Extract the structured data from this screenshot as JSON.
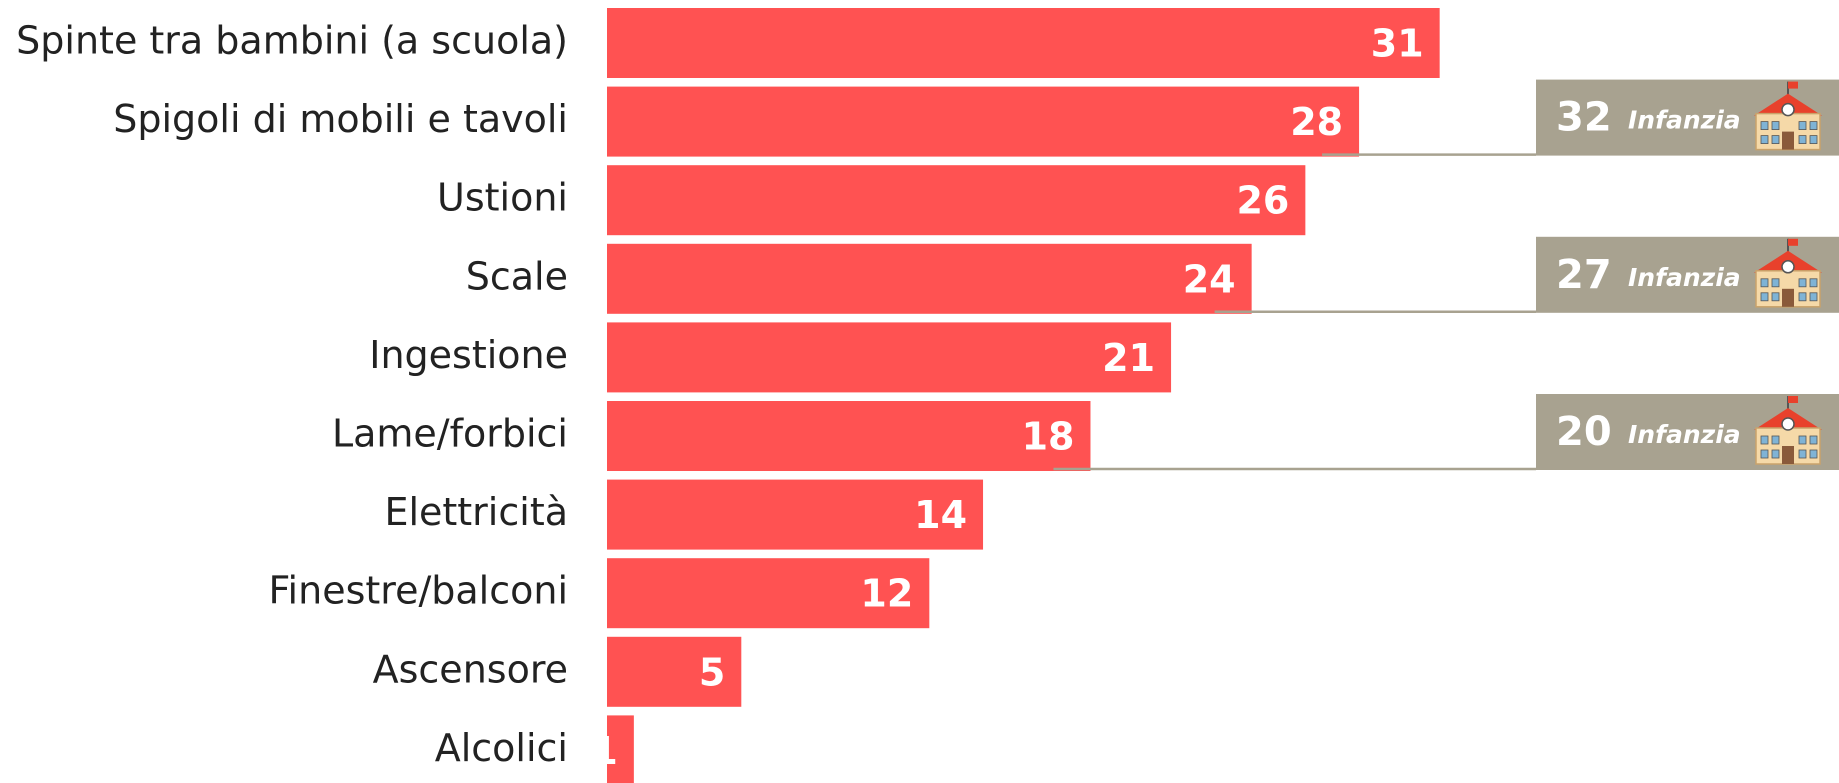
{
  "chart_data": {
    "type": "barh",
    "categories": [
      "Spinte tra bambini (a scuola)",
      "Spigoli di mobili e tavoli",
      "Ustioni",
      "Scale",
      "Ingestione",
      "Lame/forbici",
      "Elettricità",
      "Finestre/balconi",
      "Ascensore",
      "Alcolici"
    ],
    "values": [
      31,
      28,
      26,
      24,
      21,
      18,
      14,
      12,
      5,
      1
    ],
    "color": "#ff5252",
    "annotation_values": [
      null,
      32,
      null,
      27,
      null,
      20,
      null,
      null,
      null,
      null
    ],
    "annotation_labels": [
      null,
      "Infanzia",
      null,
      "Infanzia",
      null,
      "Infanzia",
      null,
      null,
      null,
      null
    ],
    "annotation_color": "#a8a290"
  }
}
